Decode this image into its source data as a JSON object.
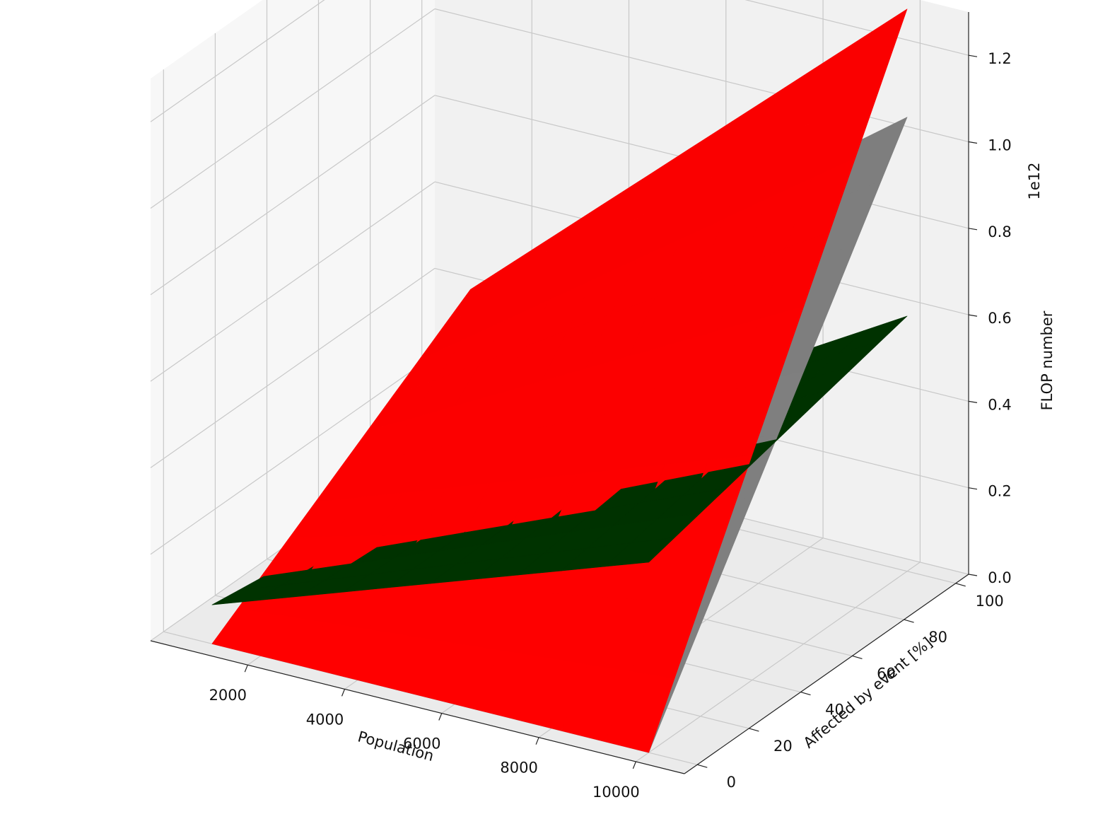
{
  "chart_data": {
    "type": "surface3d",
    "title": "",
    "xlabel": "Population",
    "ylabel": "Affected by event [%]",
    "zlabel": "FLOP number",
    "z_offset_text": "1e12",
    "xlim": [
      0,
      11000
    ],
    "ylim": [
      -5,
      105
    ],
    "zlim": [
      0,
      1.3
    ],
    "x_ticks": [
      2000,
      4000,
      6000,
      8000,
      10000
    ],
    "x_tick_labels": [
      "2000",
      "4000",
      "6000",
      "8000",
      "10000"
    ],
    "y_ticks": [
      0,
      20,
      40,
      60,
      80,
      100
    ],
    "y_tick_labels": [
      "0",
      "20",
      "40",
      "60",
      "80",
      "100"
    ],
    "z_ticks": [
      0.0,
      0.2,
      0.4,
      0.6,
      0.8,
      1.0,
      1.2
    ],
    "z_tick_labels": [
      "0.0",
      "0.2",
      "0.4",
      "0.6",
      "0.8",
      "1.0",
      "1.2"
    ],
    "grid": true,
    "x_range": [
      1000,
      10000
    ],
    "y_range": [
      0,
      100
    ],
    "series": [
      {
        "color": "#ff0000",
        "corners": [
          {
            "x": 1000,
            "y": 0,
            "z": 0.0
          },
          {
            "x": 10000,
            "y": 0,
            "z": 0.0
          },
          {
            "x": 1000,
            "y": 100,
            "z": 0.4
          },
          {
            "x": 10000,
            "y": 100,
            "z": 1.3
          }
        ]
      },
      {
        "color": "#808080",
        "corners": [
          {
            "x": 1000,
            "y": 0,
            "z": 0.0
          },
          {
            "x": 10000,
            "y": 0,
            "z": 0.0
          },
          {
            "x": 1000,
            "y": 100,
            "z": 0.3
          },
          {
            "x": 10000,
            "y": 100,
            "z": 1.05
          }
        ]
      },
      {
        "color": "#003300",
        "corners": [
          {
            "x": 1000,
            "y": 0,
            "z": 0.09
          },
          {
            "x": 10000,
            "y": 0,
            "z": 0.44
          },
          {
            "x": 1000,
            "y": 100,
            "z": 0.0
          },
          {
            "x": 10000,
            "y": 100,
            "z": 0.59
          }
        ]
      }
    ]
  }
}
